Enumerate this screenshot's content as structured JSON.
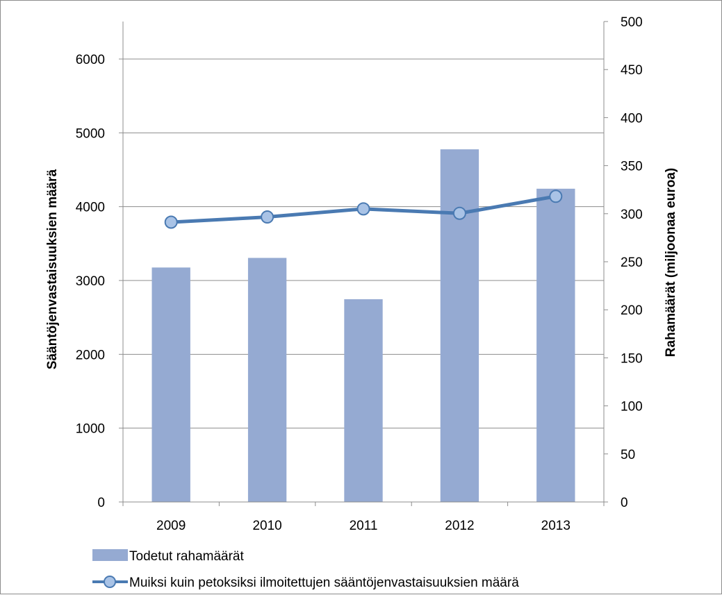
{
  "chart_data": {
    "type": "bar",
    "categories": [
      "2009",
      "2010",
      "2011",
      "2012",
      "2013"
    ],
    "series": [
      {
        "name": "Todetut rahamäärät",
        "type": "bar",
        "axis": "right",
        "color": "#95aad2",
        "values": [
          244,
          254,
          211,
          367,
          326
        ]
      },
      {
        "name": "Muiksi kuin petoksiksi ilmoitettujen sääntöjenvastaisuuksien määrä",
        "type": "line",
        "axis": "left",
        "color": "#4a7ab2",
        "marker_fill": "#a9c3e6",
        "values": [
          3790,
          3860,
          3970,
          3910,
          4140
        ]
      }
    ],
    "ylabel": "Sääntöjenvastaisuuksien määrä",
    "y2label": "Rahamäärät (miljoonaa euroa)",
    "ylim": [
      0,
      6000
    ],
    "y2lim": [
      0,
      500
    ],
    "yticks": [
      "0",
      "1000",
      "2000",
      "3000",
      "4000",
      "5000",
      "6000"
    ],
    "y2ticks": [
      "0",
      "50",
      "100",
      "150",
      "200",
      "250",
      "300",
      "350",
      "400",
      "450",
      "500"
    ],
    "grid": true,
    "legend_position": "bottom"
  }
}
